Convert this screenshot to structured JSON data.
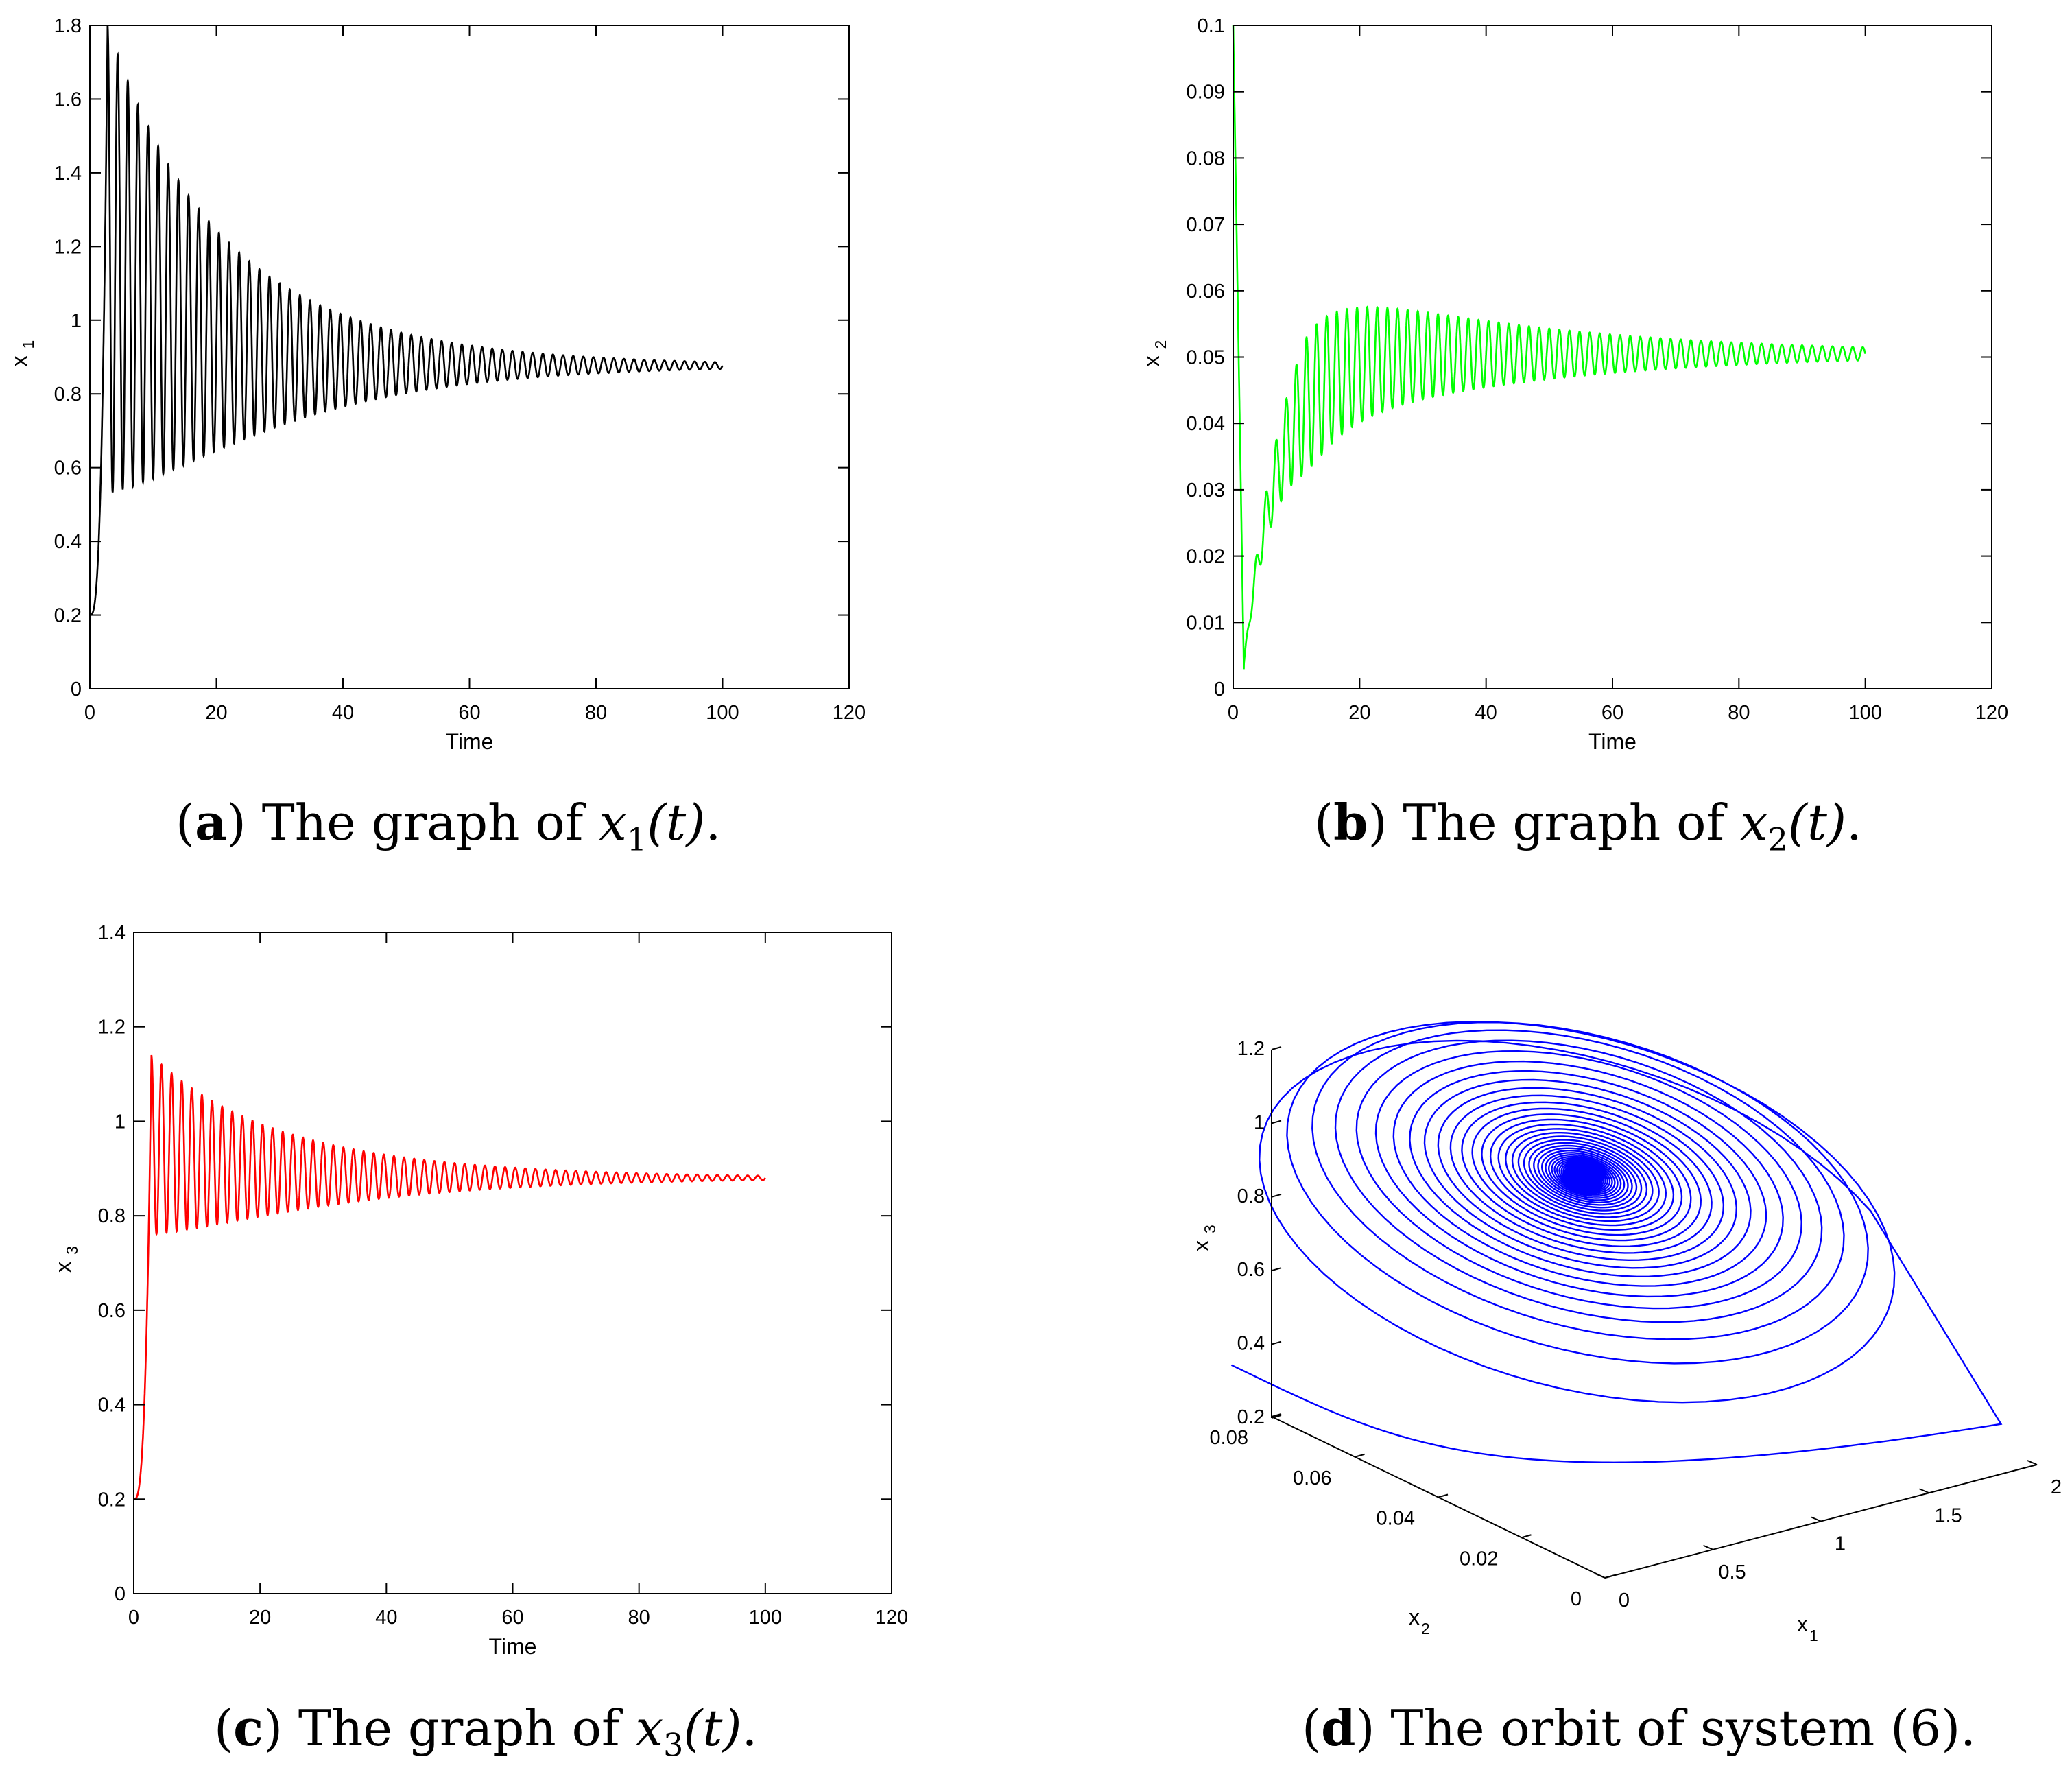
{
  "chart_data": [
    {
      "id": "a",
      "type": "line",
      "xlabel": "Time",
      "ylabel": "x",
      "ylabel_sub": "1",
      "xlim": [
        0,
        120
      ],
      "ylim": [
        0,
        1.8
      ],
      "xticks": [
        "0",
        "20",
        "40",
        "60",
        "80",
        "100",
        "120"
      ],
      "yticks": [
        "0",
        "0.2",
        "0.4",
        "0.6",
        "0.8",
        "1",
        "1.2",
        "1.4",
        "1.6",
        "1.8"
      ],
      "series": [
        {
          "color": "#000000",
          "x_range": [
            0,
            100
          ],
          "initial": 0.2,
          "equilibrium": 0.877,
          "first_peak": 1.8,
          "first_trough": 0.53,
          "period": 1.6,
          "final_amplitude": 0.01
        }
      ]
    },
    {
      "id": "b",
      "type": "line",
      "xlabel": "Time",
      "ylabel": "x",
      "ylabel_sub": "2",
      "xlim": [
        0,
        120
      ],
      "ylim": [
        0,
        0.1
      ],
      "xticks": [
        "0",
        "20",
        "40",
        "60",
        "80",
        "100",
        "120"
      ],
      "yticks": [
        "0",
        "0.01",
        "0.02",
        "0.03",
        "0.04",
        "0.05",
        "0.06",
        "0.07",
        "0.08",
        "0.09",
        "0.1"
      ],
      "series": [
        {
          "color": "#00ff00",
          "x_range": [
            0,
            100
          ],
          "initial": 0.1,
          "minimum": 0.002,
          "equilibrium": 0.0505,
          "first_peak": 0.0605,
          "first_trough": 0.039,
          "period": 1.6,
          "final_amplitude": 0.0008
        }
      ]
    },
    {
      "id": "c",
      "type": "line",
      "xlabel": "Time",
      "ylabel": "x",
      "ylabel_sub": "3",
      "xlim": [
        0,
        120
      ],
      "ylim": [
        0,
        1.4
      ],
      "xticks": [
        "0",
        "20",
        "40",
        "60",
        "80",
        "100",
        "120"
      ],
      "yticks": [
        "0",
        "0.2",
        "0.4",
        "0.6",
        "0.8",
        "1",
        "1.2",
        "1.4"
      ],
      "series": [
        {
          "color": "#ff0000",
          "x_range": [
            0,
            100
          ],
          "initial": 0.2,
          "equilibrium": 0.88,
          "first_peak": 1.14,
          "first_trough": 0.76,
          "period": 1.6,
          "final_amplitude": 0.005
        }
      ]
    },
    {
      "id": "d",
      "type": "line",
      "projection": "3d",
      "xlabel": "x",
      "xlabel_sub": "1",
      "ylabel": "x",
      "ylabel_sub": "2",
      "zlabel": "x",
      "zlabel_sub": "3",
      "xlim": [
        0,
        2
      ],
      "ylim": [
        0,
        0.08
      ],
      "zlim": [
        0.2,
        1.2
      ],
      "xticks": [
        "0",
        "0.5",
        "1",
        "1.5",
        "2"
      ],
      "yticks": [
        "0",
        "0.02",
        "0.04",
        "0.06",
        "0.08"
      ],
      "zticks": [
        "0.2",
        "0.4",
        "0.6",
        "0.8",
        "1",
        "1.2"
      ],
      "series": [
        {
          "color": "#0000ff",
          "start": [
            0.2,
            0.1,
            0.2
          ],
          "end": [
            0.877,
            0.0505,
            0.88
          ]
        }
      ]
    }
  ],
  "captions": [
    {
      "label": "a",
      "text": "The graph of",
      "var": "x",
      "sub": "1",
      "arg": "(t)",
      "end": "."
    },
    {
      "label": "b",
      "text": "The graph of",
      "var": "x",
      "sub": "2",
      "arg": "(t)",
      "end": "."
    },
    {
      "label": "c",
      "text": "The graph of",
      "var": "x",
      "sub": "3",
      "arg": "(t)",
      "end": "."
    },
    {
      "label": "d",
      "text": "The orbit of system (6).",
      "var": "",
      "sub": "",
      "arg": "",
      "end": ""
    }
  ]
}
